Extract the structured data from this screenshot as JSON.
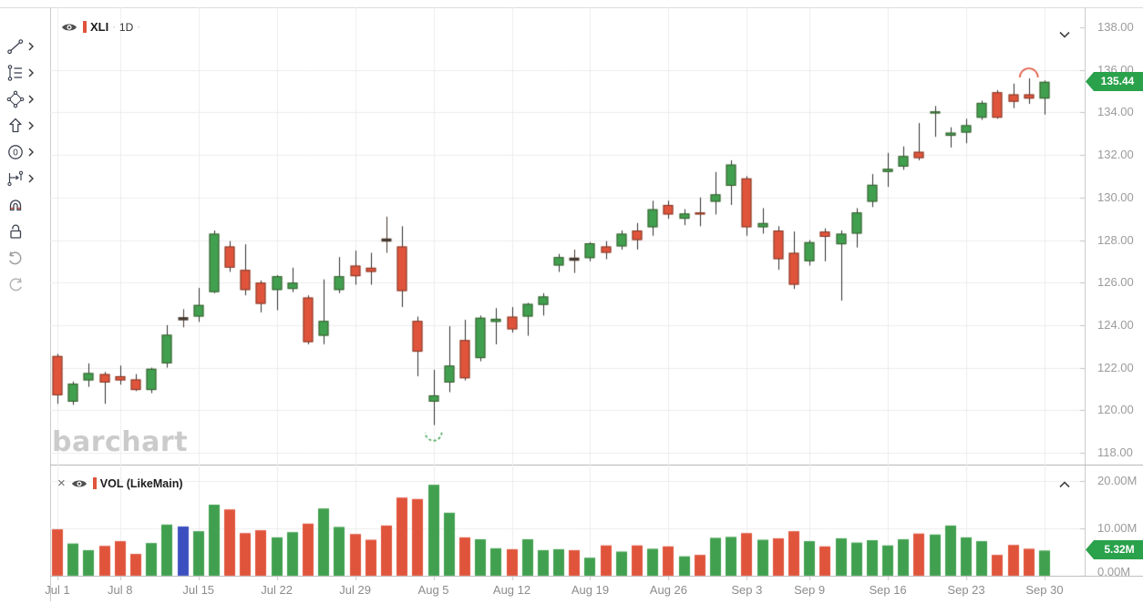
{
  "price_pane": {
    "legend": {
      "symbol": "XLI",
      "separator": "·",
      "timeframe": "1D"
    },
    "badge": "135.44",
    "watermark": "barchart"
  },
  "volume_pane": {
    "legend": {
      "close_glyph": "×",
      "label": "VOL (LikeMain)"
    },
    "badge": "5.32M"
  },
  "price_axis": {
    "ticks": [
      {
        "label": "138.00",
        "value": 138
      },
      {
        "label": "136.00",
        "value": 136
      },
      {
        "label": "134.00",
        "value": 134
      },
      {
        "label": "132.00",
        "value": 132
      },
      {
        "label": "130.00",
        "value": 130
      },
      {
        "label": "128.00",
        "value": 128
      },
      {
        "label": "126.00",
        "value": 126
      },
      {
        "label": "124.00",
        "value": 124
      },
      {
        "label": "122.00",
        "value": 122
      },
      {
        "label": "120.00",
        "value": 120
      },
      {
        "label": "118.00",
        "value": 118
      }
    ]
  },
  "volume_axis": {
    "ticks": [
      {
        "label": "20.00M",
        "value": 20
      },
      {
        "label": "10.00M",
        "value": 10
      },
      {
        "label": "0.00M",
        "value": 0
      }
    ]
  },
  "toolbar": {
    "tools": [
      "trend-line",
      "fibonacci",
      "shapes",
      "arrow-marker",
      "annotation",
      "measure",
      "magnet",
      "unlock",
      "undo",
      "redo"
    ]
  },
  "colors": {
    "up": "#41a04f",
    "down": "#e0543c",
    "doji": "#44372e",
    "wick": "#2f2f2f",
    "volume_highlight": "#3b4fc0",
    "badge": "#2aa14b",
    "grid": "#ededed",
    "axis_text": "#9b9b9b",
    "watermark": "#cbcbcb"
  },
  "chart_data": {
    "type": "candlestick",
    "symbol": "XLI",
    "interval": "1D",
    "price_range": [
      118,
      138
    ],
    "volume_range_millions": [
      0,
      20
    ],
    "last_price": 135.44,
    "last_volume": "5.32M",
    "legend_position": "top-left",
    "grid": true,
    "week_ticks": [
      {
        "i": 0,
        "label": "Jul 1"
      },
      {
        "i": 4,
        "label": "Jul 8"
      },
      {
        "i": 9,
        "label": "Jul 15"
      },
      {
        "i": 14,
        "label": "Jul 22"
      },
      {
        "i": 19,
        "label": "Jul 29"
      },
      {
        "i": 24,
        "label": "Aug 5"
      },
      {
        "i": 29,
        "label": "Aug 12"
      },
      {
        "i": 34,
        "label": "Aug 19"
      },
      {
        "i": 39,
        "label": "Aug 26"
      },
      {
        "i": 44,
        "label": "Sep 3"
      },
      {
        "i": 48,
        "label": "Sep 9"
      },
      {
        "i": 53,
        "label": "Sep 16"
      },
      {
        "i": 58,
        "label": "Sep 23"
      },
      {
        "i": 63,
        "label": "Sep 30"
      }
    ],
    "annotations": [
      {
        "type": "arc-high",
        "index": 62,
        "color": "#e0543c"
      },
      {
        "type": "arc-low",
        "index": 24,
        "color": "#41a04f"
      }
    ],
    "candles": [
      {
        "d": "Jul 1",
        "o": 122.55,
        "h": 122.65,
        "l": 120.3,
        "c": 120.7,
        "v": 9.8,
        "vc": "r"
      },
      {
        "d": "Jul 2",
        "o": 120.4,
        "h": 121.35,
        "l": 120.25,
        "c": 121.25,
        "v": 6.8,
        "vc": "g"
      },
      {
        "d": "Jul 3",
        "o": 121.4,
        "h": 122.2,
        "l": 121.1,
        "c": 121.75,
        "v": 5.4,
        "vc": "g"
      },
      {
        "d": "Jul 5",
        "o": 121.7,
        "h": 121.8,
        "l": 120.3,
        "c": 121.3,
        "v": 6.3,
        "vc": "r"
      },
      {
        "d": "Jul 8",
        "o": 121.6,
        "h": 122.1,
        "l": 121.2,
        "c": 121.4,
        "v": 7.3,
        "vc": "r"
      },
      {
        "d": "Jul 9",
        "o": 121.45,
        "h": 121.7,
        "l": 120.9,
        "c": 120.95,
        "v": 4.6,
        "vc": "r"
      },
      {
        "d": "Jul 10",
        "o": 120.95,
        "h": 122.0,
        "l": 120.8,
        "c": 121.95,
        "v": 6.9,
        "vc": "g"
      },
      {
        "d": "Jul 11",
        "o": 122.2,
        "h": 124.0,
        "l": 122.0,
        "c": 123.55,
        "v": 10.8,
        "vc": "g"
      },
      {
        "d": "Jul 12",
        "o": 124.3,
        "h": 124.75,
        "l": 123.9,
        "c": 124.3,
        "v": 10.4,
        "vc": "b",
        "doji": true
      },
      {
        "d": "Jul 15",
        "o": 124.4,
        "h": 125.75,
        "l": 124.15,
        "c": 124.95,
        "v": 9.4,
        "vc": "g"
      },
      {
        "d": "Jul 16",
        "o": 125.55,
        "h": 128.45,
        "l": 125.5,
        "c": 128.3,
        "v": 15.0,
        "vc": "g"
      },
      {
        "d": "Jul 17",
        "o": 127.7,
        "h": 127.95,
        "l": 126.5,
        "c": 126.7,
        "v": 14.0,
        "vc": "r"
      },
      {
        "d": "Jul 18",
        "o": 126.6,
        "h": 127.8,
        "l": 125.4,
        "c": 125.65,
        "v": 9.0,
        "vc": "r"
      },
      {
        "d": "Jul 19",
        "o": 126.0,
        "h": 126.1,
        "l": 124.6,
        "c": 125.0,
        "v": 9.6,
        "vc": "r"
      },
      {
        "d": "Jul 22",
        "o": 125.65,
        "h": 126.35,
        "l": 124.7,
        "c": 126.3,
        "v": 8.1,
        "vc": "g"
      },
      {
        "d": "Jul 23",
        "o": 125.7,
        "h": 126.7,
        "l": 125.55,
        "c": 126.0,
        "v": 9.2,
        "vc": "g"
      },
      {
        "d": "Jul 24",
        "o": 125.3,
        "h": 125.4,
        "l": 123.1,
        "c": 123.2,
        "v": 11.0,
        "vc": "r"
      },
      {
        "d": "Jul 25",
        "o": 123.5,
        "h": 126.15,
        "l": 123.1,
        "c": 124.2,
        "v": 14.2,
        "vc": "g"
      },
      {
        "d": "Jul 26",
        "o": 125.65,
        "h": 127.2,
        "l": 125.5,
        "c": 126.3,
        "v": 10.3,
        "vc": "g"
      },
      {
        "d": "Jul 29",
        "o": 126.8,
        "h": 127.5,
        "l": 125.9,
        "c": 126.3,
        "v": 8.8,
        "vc": "r"
      },
      {
        "d": "Jul 30",
        "o": 126.7,
        "h": 127.4,
        "l": 125.9,
        "c": 126.5,
        "v": 7.6,
        "vc": "r"
      },
      {
        "d": "Jul 31",
        "o": 128.0,
        "h": 129.1,
        "l": 127.4,
        "c": 128.0,
        "v": 10.6,
        "vc": "r",
        "doji": true
      },
      {
        "d": "Aug 1",
        "o": 127.7,
        "h": 128.65,
        "l": 124.85,
        "c": 125.6,
        "v": 16.5,
        "vc": "r"
      },
      {
        "d": "Aug 2",
        "o": 124.2,
        "h": 124.4,
        "l": 121.6,
        "c": 122.75,
        "v": 16.2,
        "vc": "r"
      },
      {
        "d": "Aug 5",
        "o": 120.4,
        "h": 121.9,
        "l": 119.3,
        "c": 120.7,
        "v": 19.2,
        "vc": "g"
      },
      {
        "d": "Aug 6",
        "o": 121.3,
        "h": 123.95,
        "l": 120.85,
        "c": 122.1,
        "v": 13.3,
        "vc": "g"
      },
      {
        "d": "Aug 7",
        "o": 123.3,
        "h": 124.25,
        "l": 121.4,
        "c": 121.5,
        "v": 8.1,
        "vc": "r"
      },
      {
        "d": "Aug 8",
        "o": 122.45,
        "h": 124.45,
        "l": 122.3,
        "c": 124.35,
        "v": 7.7,
        "vc": "g"
      },
      {
        "d": "Aug 9",
        "o": 124.15,
        "h": 124.8,
        "l": 123.1,
        "c": 124.3,
        "v": 5.8,
        "vc": "g"
      },
      {
        "d": "Aug 12",
        "o": 124.4,
        "h": 124.85,
        "l": 123.65,
        "c": 123.8,
        "v": 5.6,
        "vc": "r"
      },
      {
        "d": "Aug 13",
        "o": 124.4,
        "h": 125.05,
        "l": 123.5,
        "c": 125.0,
        "v": 7.7,
        "vc": "g"
      },
      {
        "d": "Aug 14",
        "o": 124.95,
        "h": 125.5,
        "l": 124.45,
        "c": 125.35,
        "v": 5.4,
        "vc": "g"
      },
      {
        "d": "Aug 15",
        "o": 126.8,
        "h": 127.35,
        "l": 126.5,
        "c": 127.2,
        "v": 5.6,
        "vc": "g"
      },
      {
        "d": "Aug 16",
        "o": 127.1,
        "h": 127.55,
        "l": 126.45,
        "c": 127.1,
        "v": 5.4,
        "vc": "r",
        "doji": true
      },
      {
        "d": "Aug 19",
        "o": 127.15,
        "h": 127.9,
        "l": 127.0,
        "c": 127.85,
        "v": 3.8,
        "vc": "g"
      },
      {
        "d": "Aug 20",
        "o": 127.7,
        "h": 127.95,
        "l": 127.1,
        "c": 127.4,
        "v": 6.4,
        "vc": "r"
      },
      {
        "d": "Aug 21",
        "o": 127.7,
        "h": 128.45,
        "l": 127.55,
        "c": 128.3,
        "v": 5.1,
        "vc": "g"
      },
      {
        "d": "Aug 22",
        "o": 128.45,
        "h": 128.8,
        "l": 127.55,
        "c": 128.0,
        "v": 6.4,
        "vc": "r"
      },
      {
        "d": "Aug 23",
        "o": 128.6,
        "h": 129.85,
        "l": 128.2,
        "c": 129.45,
        "v": 5.7,
        "vc": "g"
      },
      {
        "d": "Aug 26",
        "o": 129.65,
        "h": 129.85,
        "l": 129.0,
        "c": 129.2,
        "v": 6.2,
        "vc": "r"
      },
      {
        "d": "Aug 27",
        "o": 129.0,
        "h": 129.45,
        "l": 128.7,
        "c": 129.25,
        "v": 4.1,
        "vc": "g"
      },
      {
        "d": "Aug 28",
        "o": 129.3,
        "h": 130.0,
        "l": 128.65,
        "c": 129.2,
        "v": 4.4,
        "vc": "r"
      },
      {
        "d": "Aug 29",
        "o": 129.8,
        "h": 131.2,
        "l": 129.2,
        "c": 130.15,
        "v": 8.0,
        "vc": "g"
      },
      {
        "d": "Aug 30",
        "o": 130.55,
        "h": 131.75,
        "l": 129.65,
        "c": 131.55,
        "v": 8.2,
        "vc": "g"
      },
      {
        "d": "Sep 3",
        "o": 130.9,
        "h": 131.0,
        "l": 128.2,
        "c": 128.6,
        "v": 9.0,
        "vc": "r"
      },
      {
        "d": "Sep 4",
        "o": 128.6,
        "h": 129.5,
        "l": 128.3,
        "c": 128.8,
        "v": 7.6,
        "vc": "g"
      },
      {
        "d": "Sep 5",
        "o": 128.45,
        "h": 128.65,
        "l": 126.6,
        "c": 127.1,
        "v": 7.9,
        "vc": "r"
      },
      {
        "d": "Sep 6",
        "o": 127.4,
        "h": 128.4,
        "l": 125.7,
        "c": 125.9,
        "v": 9.4,
        "vc": "r"
      },
      {
        "d": "Sep 9",
        "o": 127.0,
        "h": 128.0,
        "l": 126.8,
        "c": 127.9,
        "v": 7.3,
        "vc": "g"
      },
      {
        "d": "Sep 10",
        "o": 128.4,
        "h": 128.55,
        "l": 127.0,
        "c": 128.15,
        "v": 6.2,
        "vc": "r"
      },
      {
        "d": "Sep 11",
        "o": 127.8,
        "h": 128.45,
        "l": 125.15,
        "c": 128.3,
        "v": 7.9,
        "vc": "g"
      },
      {
        "d": "Sep 12",
        "o": 128.3,
        "h": 129.5,
        "l": 127.65,
        "c": 129.3,
        "v": 7.0,
        "vc": "g"
      },
      {
        "d": "Sep 13",
        "o": 129.8,
        "h": 131.1,
        "l": 129.55,
        "c": 130.6,
        "v": 7.5,
        "vc": "g"
      },
      {
        "d": "Sep 16",
        "o": 131.2,
        "h": 132.1,
        "l": 130.5,
        "c": 131.35,
        "v": 6.4,
        "vc": "g"
      },
      {
        "d": "Sep 17",
        "o": 131.45,
        "h": 132.4,
        "l": 131.3,
        "c": 131.95,
        "v": 7.7,
        "vc": "g"
      },
      {
        "d": "Sep 18",
        "o": 132.15,
        "h": 133.5,
        "l": 131.75,
        "c": 131.85,
        "v": 8.9,
        "vc": "r"
      },
      {
        "d": "Sep 19",
        "o": 133.95,
        "h": 134.3,
        "l": 132.85,
        "c": 134.05,
        "v": 8.7,
        "vc": "g"
      },
      {
        "d": "Sep 20",
        "o": 132.9,
        "h": 133.3,
        "l": 132.35,
        "c": 133.05,
        "v": 10.6,
        "vc": "g"
      },
      {
        "d": "Sep 23",
        "o": 133.05,
        "h": 133.7,
        "l": 132.55,
        "c": 133.4,
        "v": 8.1,
        "vc": "g"
      },
      {
        "d": "Sep 24",
        "o": 133.75,
        "h": 134.55,
        "l": 133.65,
        "c": 134.45,
        "v": 7.3,
        "vc": "g"
      },
      {
        "d": "Sep 25",
        "o": 134.95,
        "h": 135.05,
        "l": 133.7,
        "c": 133.75,
        "v": 4.4,
        "vc": "r"
      },
      {
        "d": "Sep 26",
        "o": 134.85,
        "h": 135.35,
        "l": 134.2,
        "c": 134.5,
        "v": 6.5,
        "vc": "r"
      },
      {
        "d": "Sep 27",
        "o": 134.85,
        "h": 135.6,
        "l": 134.4,
        "c": 134.65,
        "v": 5.7,
        "vc": "r"
      },
      {
        "d": "Sep 30",
        "o": 134.65,
        "h": 135.5,
        "l": 133.9,
        "c": 135.44,
        "v": 5.32,
        "vc": "g"
      }
    ]
  }
}
